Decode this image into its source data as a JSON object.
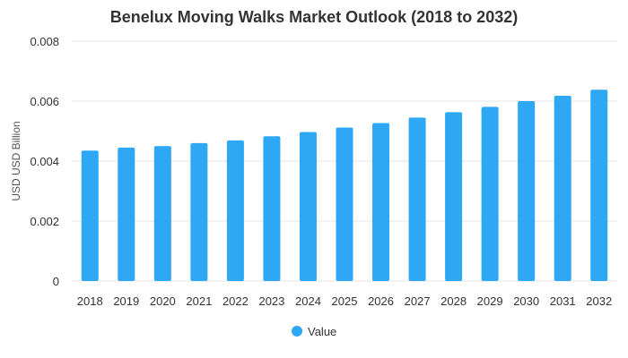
{
  "chart_data": {
    "type": "bar",
    "title": "Benelux Moving Walks Market Outlook (2018 to 2032)",
    "xlabel": "",
    "ylabel": "USD USD Billion",
    "categories": [
      "2018",
      "2019",
      "2020",
      "2021",
      "2022",
      "2023",
      "2024",
      "2025",
      "2026",
      "2027",
      "2028",
      "2029",
      "2030",
      "2031",
      "2032"
    ],
    "series": [
      {
        "name": "Value",
        "color": "#2ea8f5",
        "values": [
          0.00435,
          0.00445,
          0.0045,
          0.0046,
          0.00469,
          0.00483,
          0.00497,
          0.00512,
          0.00527,
          0.00545,
          0.00563,
          0.00581,
          0.006,
          0.00618,
          0.00638
        ]
      }
    ],
    "ylim": [
      0,
      0.008
    ],
    "yticks": [
      "0",
      "0.002",
      "0.004",
      "0.006",
      "0.008"
    ],
    "grid": true,
    "legend_position": "bottom"
  }
}
